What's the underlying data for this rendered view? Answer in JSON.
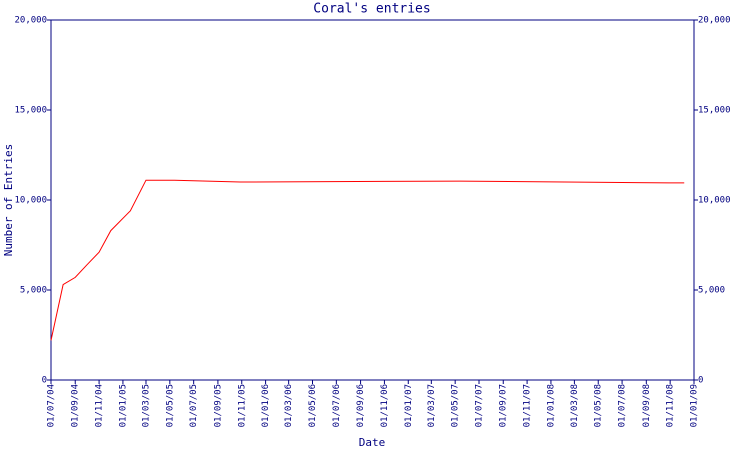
{
  "chart_data": {
    "type": "line",
    "title": "Coral's entries",
    "x_label": "Date",
    "y_label": "Number of Entries",
    "x": [
      "2004-07-01",
      "2004-08-01",
      "2004-09-01",
      "2004-10-01",
      "2004-11-01",
      "2004-12-01",
      "2005-01-20",
      "2005-03-01",
      "2005-05-13",
      "2005-10-28",
      "2007-05-13",
      "2008-10-28",
      "2008-12-07"
    ],
    "values": [
      2200,
      5300,
      5700,
      6400,
      7100,
      8300,
      9400,
      11100,
      11100,
      11000,
      11050,
      10950,
      10950
    ],
    "color": "#ff0000",
    "axis_color": "#000080",
    "xlim": [
      "2004-07-01",
      "2009-01-01"
    ],
    "xticks": [
      {
        "value": "2004-07-01",
        "label": "01/07/04"
      },
      {
        "value": "2004-09-01",
        "label": "01/09/04"
      },
      {
        "value": "2004-11-01",
        "label": "01/11/04"
      },
      {
        "value": "2005-01-01",
        "label": "01/01/05"
      },
      {
        "value": "2005-03-01",
        "label": "01/03/05"
      },
      {
        "value": "2005-05-01",
        "label": "01/05/05"
      },
      {
        "value": "2005-07-01",
        "label": "01/07/05"
      },
      {
        "value": "2005-09-01",
        "label": "01/09/05"
      },
      {
        "value": "2005-11-01",
        "label": "01/11/05"
      },
      {
        "value": "2006-01-01",
        "label": "01/01/06"
      },
      {
        "value": "2006-03-01",
        "label": "01/03/06"
      },
      {
        "value": "2006-05-01",
        "label": "01/05/06"
      },
      {
        "value": "2006-07-01",
        "label": "01/07/06"
      },
      {
        "value": "2006-09-01",
        "label": "01/09/06"
      },
      {
        "value": "2006-11-01",
        "label": "01/11/06"
      },
      {
        "value": "2007-01-01",
        "label": "01/01/07"
      },
      {
        "value": "2007-03-01",
        "label": "01/03/07"
      },
      {
        "value": "2007-05-01",
        "label": "01/05/07"
      },
      {
        "value": "2007-07-01",
        "label": "01/07/07"
      },
      {
        "value": "2007-09-01",
        "label": "01/09/07"
      },
      {
        "value": "2007-11-01",
        "label": "01/11/07"
      },
      {
        "value": "2008-01-01",
        "label": "01/01/08"
      },
      {
        "value": "2008-03-01",
        "label": "01/03/08"
      },
      {
        "value": "2008-05-01",
        "label": "01/05/08"
      },
      {
        "value": "2008-07-01",
        "label": "01/07/08"
      },
      {
        "value": "2008-09-01",
        "label": "01/09/08"
      },
      {
        "value": "2008-11-01",
        "label": "01/11/08"
      },
      {
        "value": "2009-01-01",
        "label": "01/01/09"
      }
    ],
    "ylim": [
      0,
      20000
    ],
    "yticks": [
      0,
      {
        "value": 5000,
        "label": "5,000"
      },
      {
        "value": 10000,
        "label": "10,000"
      },
      {
        "value": 15000,
        "label": "15,000"
      },
      {
        "value": 20000,
        "label": "20,000"
      }
    ],
    "right_axis": true
  }
}
